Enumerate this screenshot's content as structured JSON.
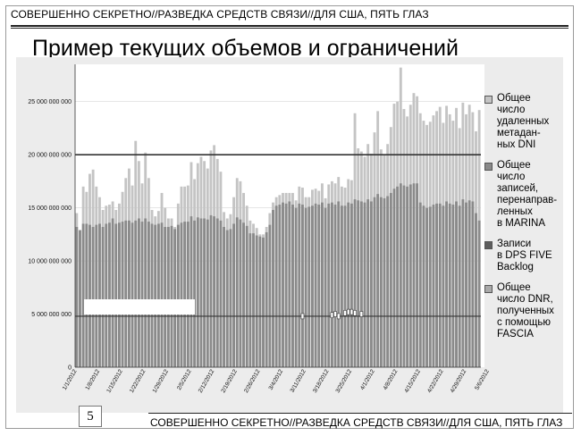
{
  "banner_top": "СОВЕРШЕННО СЕКРЕТНО//РАЗВЕДКА СРЕДСТВ СВЯЗИ//ДЛЯ США, ПЯТЬ ГЛАЗ",
  "title": "Пример текущих объемов и ограничений",
  "banner_bottom": "СОВЕРШЕННО СЕКРЕТНО//РАЗВЕДКА СРЕДСТВ СВЯЗИ//ДЛЯ США, ПЯТЬ ГЛАЗ",
  "page_number": "5",
  "colors": {
    "dni_metadata": "#c4c4c4",
    "marina_records": "#8a8a8a",
    "dps_backlog": "#5e5e5e",
    "fascia_dnr": "#a9a9a9",
    "limit_line": "#333333"
  },
  "chart_data": {
    "type": "bar",
    "stacking": "overlay",
    "y_tick_labels": [
      "0",
      "5 000 000 000",
      "10 000 000 000",
      "15 000 000 000",
      "20 000 000 000",
      "25 000 000 000"
    ],
    "y_ticks": [
      0,
      5000000000,
      10000000000,
      15000000000,
      20000000000,
      25000000000
    ],
    "ylim": [
      0,
      28000000000
    ],
    "x_tick_labels": [
      "1/1/2012",
      "1/8/2012",
      "1/15/2012",
      "1/22/2012",
      "1/29/2012",
      "2/5/2012",
      "2/12/2012",
      "2/19/2012",
      "2/26/2012",
      "3/4/2012",
      "3/11/2012",
      "3/18/2012",
      "3/25/2012",
      "4/1/2012",
      "4/8/2012",
      "4/15/2012",
      "4/22/2012",
      "4/29/2012",
      "5/6/2012"
    ],
    "reference_lines": [
      {
        "value": 20000000000
      },
      {
        "value": 4800000000
      }
    ],
    "series": [
      {
        "name": "Общее\nчисло\nудаленных\nметадан-\nных DNI",
        "legend": "Общее\nчисло\nудаленных\nметадан-\nных DNI",
        "values": [
          14500000000,
          12900000000,
          17000000000,
          16500000000,
          18200000000,
          18600000000,
          17000000000,
          16000000000,
          14800000000,
          15200000000,
          15300000000,
          15600000000,
          14800000000,
          15400000000,
          16500000000,
          17800000000,
          18700000000,
          17100000000,
          21300000000,
          19400000000,
          17300000000,
          20200000000,
          17800000000,
          14800000000,
          14200000000,
          14700000000,
          16400000000,
          15000000000,
          14000000000,
          14000000000,
          13200000000,
          15400000000,
          17000000000,
          17000000000,
          17100000000,
          19300000000,
          17700000000,
          19200000000,
          19800000000,
          19400000000,
          18700000000,
          20400000000,
          20900000000,
          19600000000,
          18400000000,
          14600000000,
          14000000000,
          14400000000,
          16000000000,
          17800000000,
          17500000000,
          16400000000,
          15200000000,
          13800000000,
          13500000000,
          13100000000,
          12500000000,
          12500000000,
          13200000000,
          14500000000,
          15500000000,
          16000000000,
          16200000000,
          16400000000,
          16400000000,
          16400000000,
          16400000000,
          15700000000,
          17000000000,
          16900000000,
          16000000000,
          16000000000,
          16700000000,
          16800000000,
          16600000000,
          17300000000,
          15900000000,
          17200000000,
          17500000000,
          17300000000,
          17900000000,
          17000000000,
          16900000000,
          17700000000,
          17600000000,
          23900000000,
          20600000000,
          20300000000,
          19800000000,
          21000000000,
          20100000000,
          22100000000,
          24100000000,
          20500000000,
          20000000000,
          21000000000,
          22600000000,
          24800000000,
          25000000000,
          28200000000,
          24300000000,
          23600000000,
          24700000000,
          25800000000,
          25500000000,
          23900000000,
          23200000000,
          22800000000,
          23100000000,
          23700000000,
          24100000000,
          24500000000,
          23000000000,
          24600000000,
          23800000000,
          23200000000,
          24400000000,
          22500000000,
          24900000000,
          23800000000,
          24700000000,
          24000000000,
          22200000000,
          24200000000
        ]
      },
      {
        "name": "Общее\nчисло\nзаписей,\nперенаправ-\nленных\nв MARINA",
        "legend": "Общее\nчисло\nзаписей,\nперенаправ-\nленных\nв MARINA",
        "values": [
          13200000000,
          12900000000,
          13500000000,
          13500000000,
          13400000000,
          13200000000,
          13400000000,
          13500000000,
          13200000000,
          13500000000,
          13600000000,
          14000000000,
          13500000000,
          13600000000,
          13700000000,
          13800000000,
          13800000000,
          13600000000,
          13800000000,
          14000000000,
          13700000000,
          14000000000,
          13700000000,
          13500000000,
          13400000000,
          13500000000,
          13600000000,
          13200000000,
          13200000000,
          13300000000,
          13000000000,
          13400000000,
          13600000000,
          13700000000,
          13700000000,
          14200000000,
          13800000000,
          14100000000,
          14000000000,
          14000000000,
          13900000000,
          14300000000,
          14200000000,
          14000000000,
          13800000000,
          13200000000,
          12900000000,
          13000000000,
          13500000000,
          14100000000,
          13900000000,
          13600000000,
          13300000000,
          12600000000,
          12600000000,
          12400000000,
          12300000000,
          12200000000,
          12700000000,
          13400000000,
          14800000000,
          15200000000,
          15300000000,
          15500000000,
          15400000000,
          15600000000,
          15300000000,
          15000000000,
          15400000000,
          15300000000,
          15000000000,
          15100000000,
          15200000000,
          15400000000,
          15300000000,
          15500000000,
          15000000000,
          15400000000,
          15500000000,
          15300000000,
          15600000000,
          15200000000,
          15200000000,
          15500000000,
          15400000000,
          15800000000,
          15700000000,
          15600000000,
          15500000000,
          15800000000,
          15600000000,
          16000000000,
          16300000000,
          16000000000,
          15900000000,
          16100000000,
          16400000000,
          16800000000,
          17000000000,
          17300000000,
          17100000000,
          17000000000,
          17200000000,
          17300000000,
          17300000000,
          15500000000,
          15200000000,
          15000000000,
          15100000000,
          15300000000,
          15400000000,
          15400000000,
          15200000000,
          15600000000,
          15400000000,
          15300000000,
          15600000000,
          15200000000,
          15800000000,
          15500000000,
          15700000000,
          15600000000,
          14500000000,
          13800000000
        ]
      },
      {
        "name": "Записи\nв DPS FIVE\nBacklog",
        "legend": "Записи\nв DPS FIVE\nBacklog",
        "markers": [
          {
            "x_index": 69,
            "value": 4800000000
          },
          {
            "x_index": 78,
            "value": 4900000000
          },
          {
            "x_index": 79,
            "value": 5000000000
          },
          {
            "x_index": 80,
            "value": 4800000000
          },
          {
            "x_index": 82,
            "value": 5100000000
          },
          {
            "x_index": 83,
            "value": 5200000000
          },
          {
            "x_index": 84,
            "value": 5200000000
          },
          {
            "x_index": 85,
            "value": 5100000000
          },
          {
            "x_index": 87,
            "value": 5000000000
          }
        ]
      },
      {
        "name": "Общее\nчисло DNR,\nполученных\nс помощью\nFASCIA",
        "legend": "Общее\nчисло DNR,\nполученных\nс помощью\nFASCIA"
      }
    ]
  }
}
